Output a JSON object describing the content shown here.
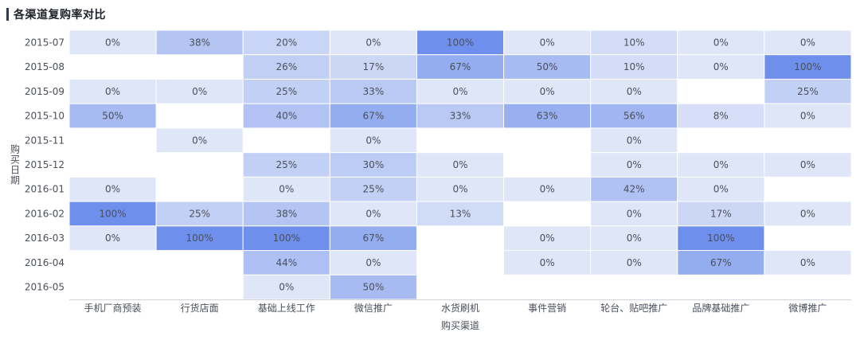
{
  "header": {
    "title": "各渠道复购率对比"
  },
  "colors": {
    "low": "#dfe6f8",
    "high": "#6f8fec",
    "text": "#4a4f5a",
    "axis": "#d0d3d9",
    "title_bar": "#2f3a4e"
  },
  "chart_data": {
    "type": "heatmap",
    "title": "各渠道复购率对比",
    "xlabel": "购买渠道",
    "ylabel": "购买日期",
    "x_categories": [
      "手机厂商预装",
      "行货店面",
      "基础上线工作",
      "微信推广",
      "水货刷机",
      "事件营销",
      "轮台、贴吧推广",
      "品牌基础推广",
      "微博推广"
    ],
    "y_categories": [
      "2015-07",
      "2015-08",
      "2015-09",
      "2015-10",
      "2015-11",
      "2015-12",
      "2016-01",
      "2016-02",
      "2016-03",
      "2016-04",
      "2016-05"
    ],
    "value_format": "percent",
    "value_range": [
      0,
      100
    ],
    "values": [
      [
        0,
        38,
        20,
        0,
        100,
        0,
        10,
        0,
        0
      ],
      [
        null,
        null,
        26,
        17,
        67,
        50,
        10,
        0,
        100
      ],
      [
        0,
        0,
        25,
        33,
        0,
        0,
        0,
        null,
        25
      ],
      [
        50,
        null,
        40,
        67,
        33,
        63,
        56,
        8,
        0
      ],
      [
        null,
        0,
        null,
        0,
        null,
        null,
        0,
        null,
        null
      ],
      [
        null,
        null,
        25,
        30,
        0,
        null,
        0,
        0,
        0
      ],
      [
        0,
        null,
        0,
        25,
        0,
        0,
        42,
        0,
        null
      ],
      [
        100,
        25,
        38,
        0,
        13,
        null,
        0,
        17,
        0
      ],
      [
        0,
        100,
        100,
        67,
        null,
        0,
        0,
        100,
        null
      ],
      [
        null,
        null,
        44,
        0,
        null,
        0,
        0,
        67,
        0
      ],
      [
        null,
        null,
        0,
        50,
        null,
        null,
        null,
        null,
        null
      ]
    ]
  }
}
